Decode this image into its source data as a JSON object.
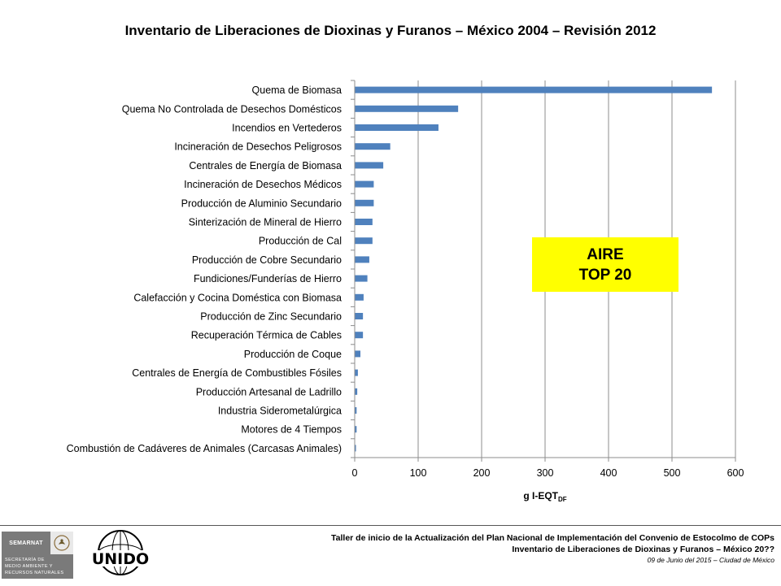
{
  "chart_data": {
    "type": "bar",
    "orientation": "horizontal",
    "title": "Inventario de Liberaciones de Dioxinas y Furanos – México 2004 – Revisión 2012",
    "categories": [
      "Quema de Biomasa",
      "Quema No Controlada de Desechos Domésticos",
      "Incendios en Vertederos",
      "Incineración de Desechos Peligrosos",
      "Centrales de Energía de Biomasa",
      "Incineración de Desechos Médicos",
      "Producción de Aluminio Secundario",
      "Sinterización de Mineral de Hierro",
      "Producción de Cal",
      "Producción de Cobre Secundario",
      "Fundiciones/Funderías de Hierro",
      "Calefacción y Cocina Doméstica con Biomasa",
      "Producción de Zinc Secundario",
      "Recuperación Térmica de Cables",
      "Producción de Coque",
      "Centrales de Energía de Combustibles Fósiles",
      "Producción Artesanal de Ladrillo",
      "Industria Siderometalúrgica",
      "Motores de 4 Tiempos",
      "Combustión de Cadáveres de Animales (Carcasas Animales)"
    ],
    "values": [
      563,
      163,
      132,
      56,
      45,
      30,
      30,
      28,
      28,
      23,
      20,
      14,
      13,
      13,
      9,
      5,
      4,
      3,
      3,
      2
    ],
    "xlabel": "g I-EQT",
    "xlabel_subscript": "DF",
    "xlim": [
      0,
      600
    ],
    "xticks": [
      "0",
      "100",
      "200",
      "300",
      "400",
      "500",
      "600"
    ],
    "grid": "vertical",
    "bar_color": "#4f81bd"
  },
  "callout": {
    "line1": "AIRE",
    "line2": "TOP 20"
  },
  "footer": {
    "line1": "Taller de inicio de la Actualización  del Plan Nacional  de Implementación del Convenio de Estocolmo  de COPs",
    "line2": "Inventario de Liberaciones de Dioxinas y Furanos – México  20??",
    "line3": "09 de Junio del 2015 – Ciudad de México",
    "semarnat_name": "SEMARNAT",
    "semarnat_sub1": "SECRETARÍA DE",
    "semarnat_sub2": "MEDIO AMBIENTE Y",
    "semarnat_sub3": "RECURSOS NATURALES",
    "unido_logo_text": "UNIDO"
  }
}
